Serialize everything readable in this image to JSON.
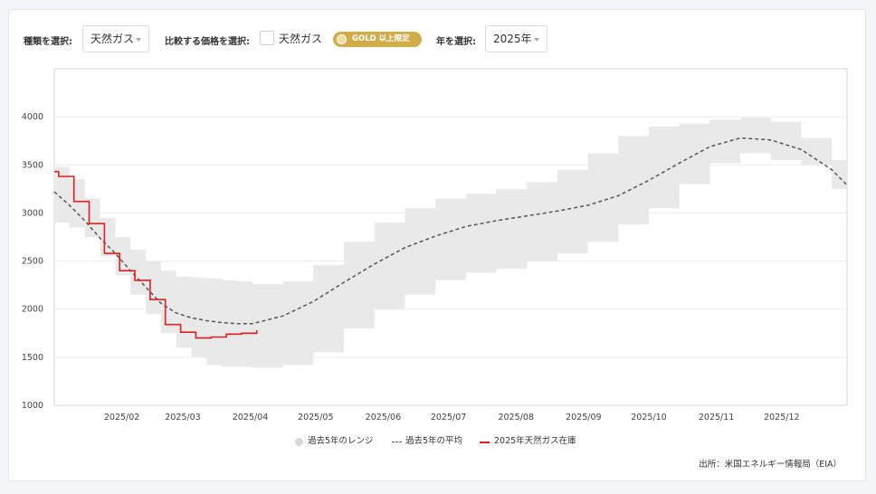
{
  "controls": {
    "type_label": "種類を選択:",
    "type_value": "天然ガス",
    "compare_label": "比較する価格を選択:",
    "compare_option": "天然ガス",
    "gold_badge": "GOLD 以上限定",
    "year_label": "年を選択:",
    "year_value": "2025年"
  },
  "legend": {
    "range": "過去5年のレンジ",
    "avg": "過去5年の平均",
    "current": "2025年天然ガス在庫"
  },
  "source": "出所：米国エネルギー情報局（EIA）",
  "colors": {
    "range_fill": "#e9e9e9",
    "avg_line": "#555555",
    "current_line": "#e02020",
    "gold": "#d1ad4a"
  },
  "chart_data": {
    "type": "area",
    "x_start": "2025-01-01",
    "x_end": "2025-12-31",
    "xticks": [
      {
        "date": "2025-02-01",
        "label": "2025/02"
      },
      {
        "date": "2025-03-01",
        "label": "2025/03"
      },
      {
        "date": "2025-04-01",
        "label": "2025/04"
      },
      {
        "date": "2025-05-01",
        "label": "2025/05"
      },
      {
        "date": "2025-06-01",
        "label": "2025/06"
      },
      {
        "date": "2025-07-01",
        "label": "2025/07"
      },
      {
        "date": "2025-08-01",
        "label": "2025/08"
      },
      {
        "date": "2025-09-01",
        "label": "2025/09"
      },
      {
        "date": "2025-10-01",
        "label": "2025/10"
      },
      {
        "date": "2025-11-01",
        "label": "2025/11"
      },
      {
        "date": "2025-12-01",
        "label": "2025/12"
      }
    ],
    "yticks": [
      1000,
      1500,
      2000,
      2500,
      3000,
      3500,
      4000
    ],
    "ylim": [
      1000,
      4500
    ],
    "grid": true,
    "legend_position": "bottom",
    "series": [
      {
        "name": "過去5年のレンジ",
        "kind": "band",
        "x": [
          "2025-01-01",
          "2025-01-08",
          "2025-01-15",
          "2025-01-22",
          "2025-01-29",
          "2025-02-05",
          "2025-02-12",
          "2025-02-19",
          "2025-02-26",
          "2025-03-05",
          "2025-03-12",
          "2025-03-19",
          "2025-03-26",
          "2025-04-02",
          "2025-04-16",
          "2025-04-30",
          "2025-05-14",
          "2025-05-28",
          "2025-06-11",
          "2025-06-25",
          "2025-07-09",
          "2025-07-23",
          "2025-08-06",
          "2025-08-20",
          "2025-09-03",
          "2025-09-17",
          "2025-10-01",
          "2025-10-15",
          "2025-10-29",
          "2025-11-12",
          "2025-11-26",
          "2025-12-10",
          "2025-12-24",
          "2025-12-31"
        ],
        "low": [
          2900,
          2850,
          2750,
          2550,
          2350,
          2150,
          1950,
          1750,
          1600,
          1500,
          1420,
          1400,
          1400,
          1390,
          1420,
          1550,
          1800,
          2000,
          2150,
          2300,
          2380,
          2420,
          2500,
          2580,
          2700,
          2880,
          3050,
          3300,
          3520,
          3620,
          3550,
          3500,
          3250,
          2950
        ],
        "high": [
          3480,
          3350,
          3150,
          2950,
          2750,
          2620,
          2500,
          2400,
          2340,
          2330,
          2320,
          2300,
          2290,
          2260,
          2290,
          2460,
          2700,
          2900,
          3050,
          3150,
          3200,
          3250,
          3320,
          3450,
          3620,
          3800,
          3900,
          3930,
          3970,
          3990,
          3950,
          3780,
          3550,
          3480
        ]
      },
      {
        "name": "過去5年の平均",
        "kind": "dashed",
        "x": [
          "2025-01-01",
          "2025-01-08",
          "2025-01-15",
          "2025-01-22",
          "2025-01-29",
          "2025-02-05",
          "2025-02-12",
          "2025-02-19",
          "2025-02-26",
          "2025-03-05",
          "2025-03-12",
          "2025-03-19",
          "2025-03-26",
          "2025-04-02",
          "2025-04-16",
          "2025-04-30",
          "2025-05-14",
          "2025-05-28",
          "2025-06-11",
          "2025-06-25",
          "2025-07-09",
          "2025-07-23",
          "2025-08-06",
          "2025-08-20",
          "2025-09-03",
          "2025-09-17",
          "2025-10-01",
          "2025-10-15",
          "2025-10-29",
          "2025-11-12",
          "2025-11-26",
          "2025-12-10",
          "2025-12-24",
          "2025-12-31"
        ],
        "values": [
          3220,
          3080,
          2920,
          2740,
          2580,
          2400,
          2230,
          2060,
          1960,
          1910,
          1880,
          1860,
          1850,
          1850,
          1930,
          2080,
          2280,
          2470,
          2640,
          2760,
          2860,
          2920,
          2970,
          3020,
          3080,
          3180,
          3340,
          3520,
          3690,
          3780,
          3760,
          3660,
          3450,
          3290
        ]
      },
      {
        "name": "2025年天然ガス在庫",
        "kind": "step",
        "x": [
          "2025-01-01",
          "2025-01-03",
          "2025-01-10",
          "2025-01-17",
          "2025-01-24",
          "2025-01-31",
          "2025-02-07",
          "2025-02-14",
          "2025-02-21",
          "2025-02-28",
          "2025-03-07",
          "2025-03-14",
          "2025-03-21",
          "2025-03-28",
          "2025-04-04"
        ],
        "values": [
          3430,
          3380,
          3120,
          2890,
          2580,
          2400,
          2300,
          2100,
          1840,
          1760,
          1700,
          1710,
          1740,
          1750,
          1780
        ]
      }
    ]
  }
}
